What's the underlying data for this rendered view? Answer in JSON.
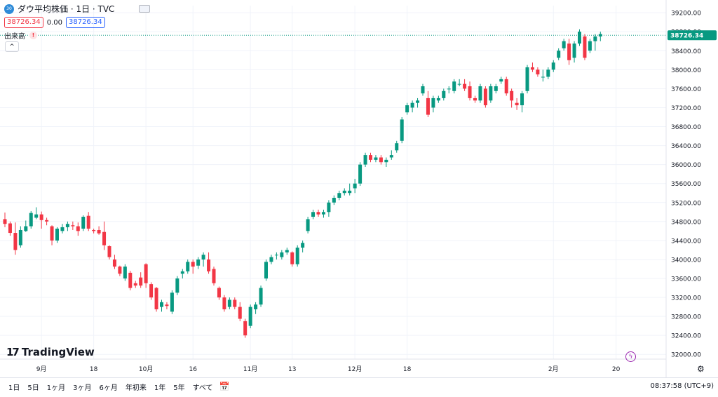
{
  "header": {
    "badge_text": "30",
    "title": "ダウ平均株価 · 1日 · TVC",
    "price_box": "38726.34",
    "change": "0.00",
    "price_box2": "38726.34",
    "volume_label": "出来高",
    "warn_glyph": "!",
    "collapse_glyph": "^"
  },
  "logo": {
    "mark": "17",
    "text": "TradingView"
  },
  "bolt_glyph": "ϟ",
  "settings_glyph": "⚙",
  "bottombar": {
    "ranges": [
      "1日",
      "5日",
      "1ヶ月",
      "3ヶ月",
      "6ヶ月",
      "年初来",
      "1年",
      "5年",
      "すべて"
    ],
    "calendar_glyph": "📅",
    "clock": "08:37:58 (UTC+9)"
  },
  "chart_data": {
    "type": "candlestick",
    "symbol": "ダウ平均株価",
    "interval": "1日",
    "source": "TVC",
    "current_price": 38726.34,
    "current_price_label": "38726.34",
    "up_color": "#089981",
    "down_color": "#f23645",
    "ylim": [
      31900,
      39350
    ],
    "y_ticks": [
      32000,
      32400,
      32800,
      33200,
      33600,
      34000,
      34400,
      34800,
      35200,
      35600,
      36000,
      36400,
      36800,
      37200,
      37600,
      38000,
      38400,
      38800,
      39200
    ],
    "y_tick_labels": [
      "32000.00",
      "32400.00",
      "32800.00",
      "33200.00",
      "33600.00",
      "34000.00",
      "34400.00",
      "34800.00",
      "35200.00",
      "35600.00",
      "36000.00",
      "36400.00",
      "36800.00",
      "37200.00",
      "37600.00",
      "38000.00",
      "38400.00",
      "38800.00",
      "39200.00"
    ],
    "x_labels": [
      {
        "index": 7,
        "label": "9月"
      },
      {
        "index": 17,
        "label": "18"
      },
      {
        "index": 27,
        "label": "10月"
      },
      {
        "index": 36,
        "label": "16"
      },
      {
        "index": 47,
        "label": "11月"
      },
      {
        "index": 55,
        "label": "13"
      },
      {
        "index": 67,
        "label": "12月"
      },
      {
        "index": 77,
        "label": "18"
      },
      {
        "index": 105,
        "label": "2月"
      },
      {
        "index": 117,
        "label": "20"
      }
    ],
    "candles": [
      [
        34850,
        34990,
        34680,
        34750
      ],
      [
        34760,
        34800,
        34500,
        34560
      ],
      [
        34560,
        34780,
        34100,
        34200
      ],
      [
        34300,
        34700,
        34250,
        34620
      ],
      [
        34600,
        34820,
        34580,
        34700
      ],
      [
        34700,
        35020,
        34650,
        34980
      ],
      [
        34880,
        35100,
        34850,
        34950
      ],
      [
        34950,
        35010,
        34650,
        34830
      ],
      [
        34830,
        34880,
        34720,
        34800
      ],
      [
        34700,
        34720,
        34300,
        34400
      ],
      [
        34400,
        34680,
        34350,
        34650
      ],
      [
        34600,
        34750,
        34550,
        34680
      ],
      [
        34680,
        34800,
        34600,
        34750
      ],
      [
        34720,
        34800,
        34620,
        34700
      ],
      [
        34700,
        34780,
        34500,
        34600
      ],
      [
        34650,
        34930,
        34600,
        34900
      ],
      [
        34920,
        35000,
        34600,
        34650
      ],
      [
        34620,
        34650,
        34550,
        34600
      ],
      [
        34620,
        34700,
        34520,
        34550
      ],
      [
        34580,
        34800,
        34200,
        34300
      ],
      [
        34280,
        34300,
        34000,
        34050
      ],
      [
        34000,
        34100,
        33800,
        33850
      ],
      [
        33850,
        33870,
        33650,
        33700
      ],
      [
        33600,
        33900,
        33550,
        33850
      ],
      [
        33720,
        33760,
        33350,
        33400
      ],
      [
        33500,
        33550,
        33400,
        33450
      ],
      [
        33620,
        33730,
        33400,
        33450
      ],
      [
        33900,
        33920,
        33400,
        33500
      ],
      [
        33480,
        33520,
        33150,
        33200
      ],
      [
        33400,
        33420,
        32900,
        32950
      ],
      [
        33000,
        33150,
        32900,
        33100
      ],
      [
        33050,
        33100,
        32950,
        33020
      ],
      [
        32900,
        33350,
        32850,
        33300
      ],
      [
        33300,
        33650,
        33250,
        33600
      ],
      [
        33700,
        33800,
        33600,
        33750
      ],
      [
        33750,
        34000,
        33700,
        33950
      ],
      [
        33950,
        34000,
        33700,
        33850
      ],
      [
        33870,
        34050,
        33800,
        34000
      ],
      [
        34000,
        34150,
        33850,
        34100
      ],
      [
        34000,
        34150,
        33700,
        33750
      ],
      [
        33800,
        33850,
        33450,
        33500
      ],
      [
        33400,
        33430,
        33150,
        33200
      ],
      [
        33200,
        33250,
        32900,
        32950
      ],
      [
        33000,
        33200,
        32950,
        33150
      ],
      [
        33150,
        33200,
        32950,
        33000
      ],
      [
        33000,
        33100,
        32700,
        32750
      ],
      [
        32700,
        32750,
        32350,
        32400
      ],
      [
        32600,
        33050,
        32550,
        33000
      ],
      [
        32950,
        33100,
        32850,
        33050
      ],
      [
        33050,
        33450,
        33000,
        33400
      ],
      [
        33600,
        34000,
        33550,
        33950
      ],
      [
        33950,
        34100,
        33900,
        34050
      ],
      [
        34100,
        34150,
        34000,
        34100
      ],
      [
        34050,
        34200,
        34000,
        34150
      ],
      [
        34150,
        34250,
        34100,
        34200
      ],
      [
        34150,
        34170,
        33850,
        33900
      ],
      [
        33900,
        34300,
        33850,
        34250
      ],
      [
        34250,
        34400,
        34150,
        34350
      ],
      [
        34600,
        34900,
        34550,
        34850
      ],
      [
        34900,
        35050,
        34850,
        35000
      ],
      [
        35000,
        35050,
        34900,
        34950
      ],
      [
        34950,
        35050,
        34880,
        35000
      ],
      [
        35000,
        35250,
        34900,
        35200
      ],
      [
        35200,
        35350,
        35150,
        35300
      ],
      [
        35300,
        35450,
        35250,
        35400
      ],
      [
        35400,
        35500,
        35350,
        35450
      ],
      [
        35400,
        35600,
        35350,
        35450
      ],
      [
        35500,
        35700,
        35400,
        35600
      ],
      [
        35600,
        36050,
        35550,
        36000
      ],
      [
        36000,
        36250,
        35950,
        36200
      ],
      [
        36200,
        36250,
        36050,
        36100
      ],
      [
        36100,
        36200,
        36050,
        36150
      ],
      [
        36150,
        36200,
        36000,
        36050
      ],
      [
        36050,
        36150,
        35950,
        36100
      ],
      [
        36150,
        36300,
        36100,
        36200
      ],
      [
        36300,
        36500,
        36250,
        36450
      ],
      [
        36500,
        37000,
        36450,
        36950
      ],
      [
        37100,
        37300,
        37050,
        37250
      ],
      [
        37200,
        37350,
        37100,
        37300
      ],
      [
        37300,
        37400,
        37200,
        37350
      ],
      [
        37500,
        37700,
        37450,
        37650
      ],
      [
        37400,
        37550,
        37000,
        37050
      ],
      [
        37200,
        37450,
        37100,
        37400
      ],
      [
        37350,
        37450,
        37300,
        37400
      ],
      [
        37400,
        37600,
        37350,
        37550
      ],
      [
        37600,
        37650,
        37500,
        37600
      ],
      [
        37550,
        37800,
        37500,
        37750
      ],
      [
        37700,
        37800,
        37650,
        37700
      ],
      [
        37700,
        37800,
        37550,
        37600
      ],
      [
        37650,
        37750,
        37350,
        37400
      ],
      [
        37400,
        37450,
        37300,
        37350
      ],
      [
        37350,
        37700,
        37300,
        37650
      ],
      [
        37600,
        37650,
        37200,
        37250
      ],
      [
        37350,
        37700,
        37300,
        37650
      ],
      [
        37550,
        37700,
        37500,
        37650
      ],
      [
        37750,
        37850,
        37700,
        37800
      ],
      [
        37800,
        37850,
        37450,
        37500
      ],
      [
        37550,
        37600,
        37200,
        37350
      ],
      [
        37300,
        37400,
        37150,
        37250
      ],
      [
        37250,
        37550,
        37100,
        37500
      ],
      [
        37550,
        38100,
        37500,
        38050
      ],
      [
        38050,
        38150,
        37950,
        38000
      ],
      [
        38000,
        38050,
        37850,
        37900
      ],
      [
        37850,
        38000,
        37750,
        37850
      ],
      [
        37850,
        38050,
        37800,
        38000
      ],
      [
        38000,
        38200,
        37950,
        38150
      ],
      [
        38250,
        38450,
        38200,
        38400
      ],
      [
        38450,
        38650,
        38400,
        38600
      ],
      [
        38550,
        38650,
        38100,
        38200
      ],
      [
        38250,
        38600,
        38150,
        38550
      ],
      [
        38550,
        38850,
        38500,
        38800
      ],
      [
        38700,
        38750,
        38200,
        38250
      ],
      [
        38400,
        38650,
        38350,
        38600
      ],
      [
        38600,
        38750,
        38400,
        38700
      ],
      [
        38700,
        38800,
        38600,
        38750
      ]
    ]
  }
}
